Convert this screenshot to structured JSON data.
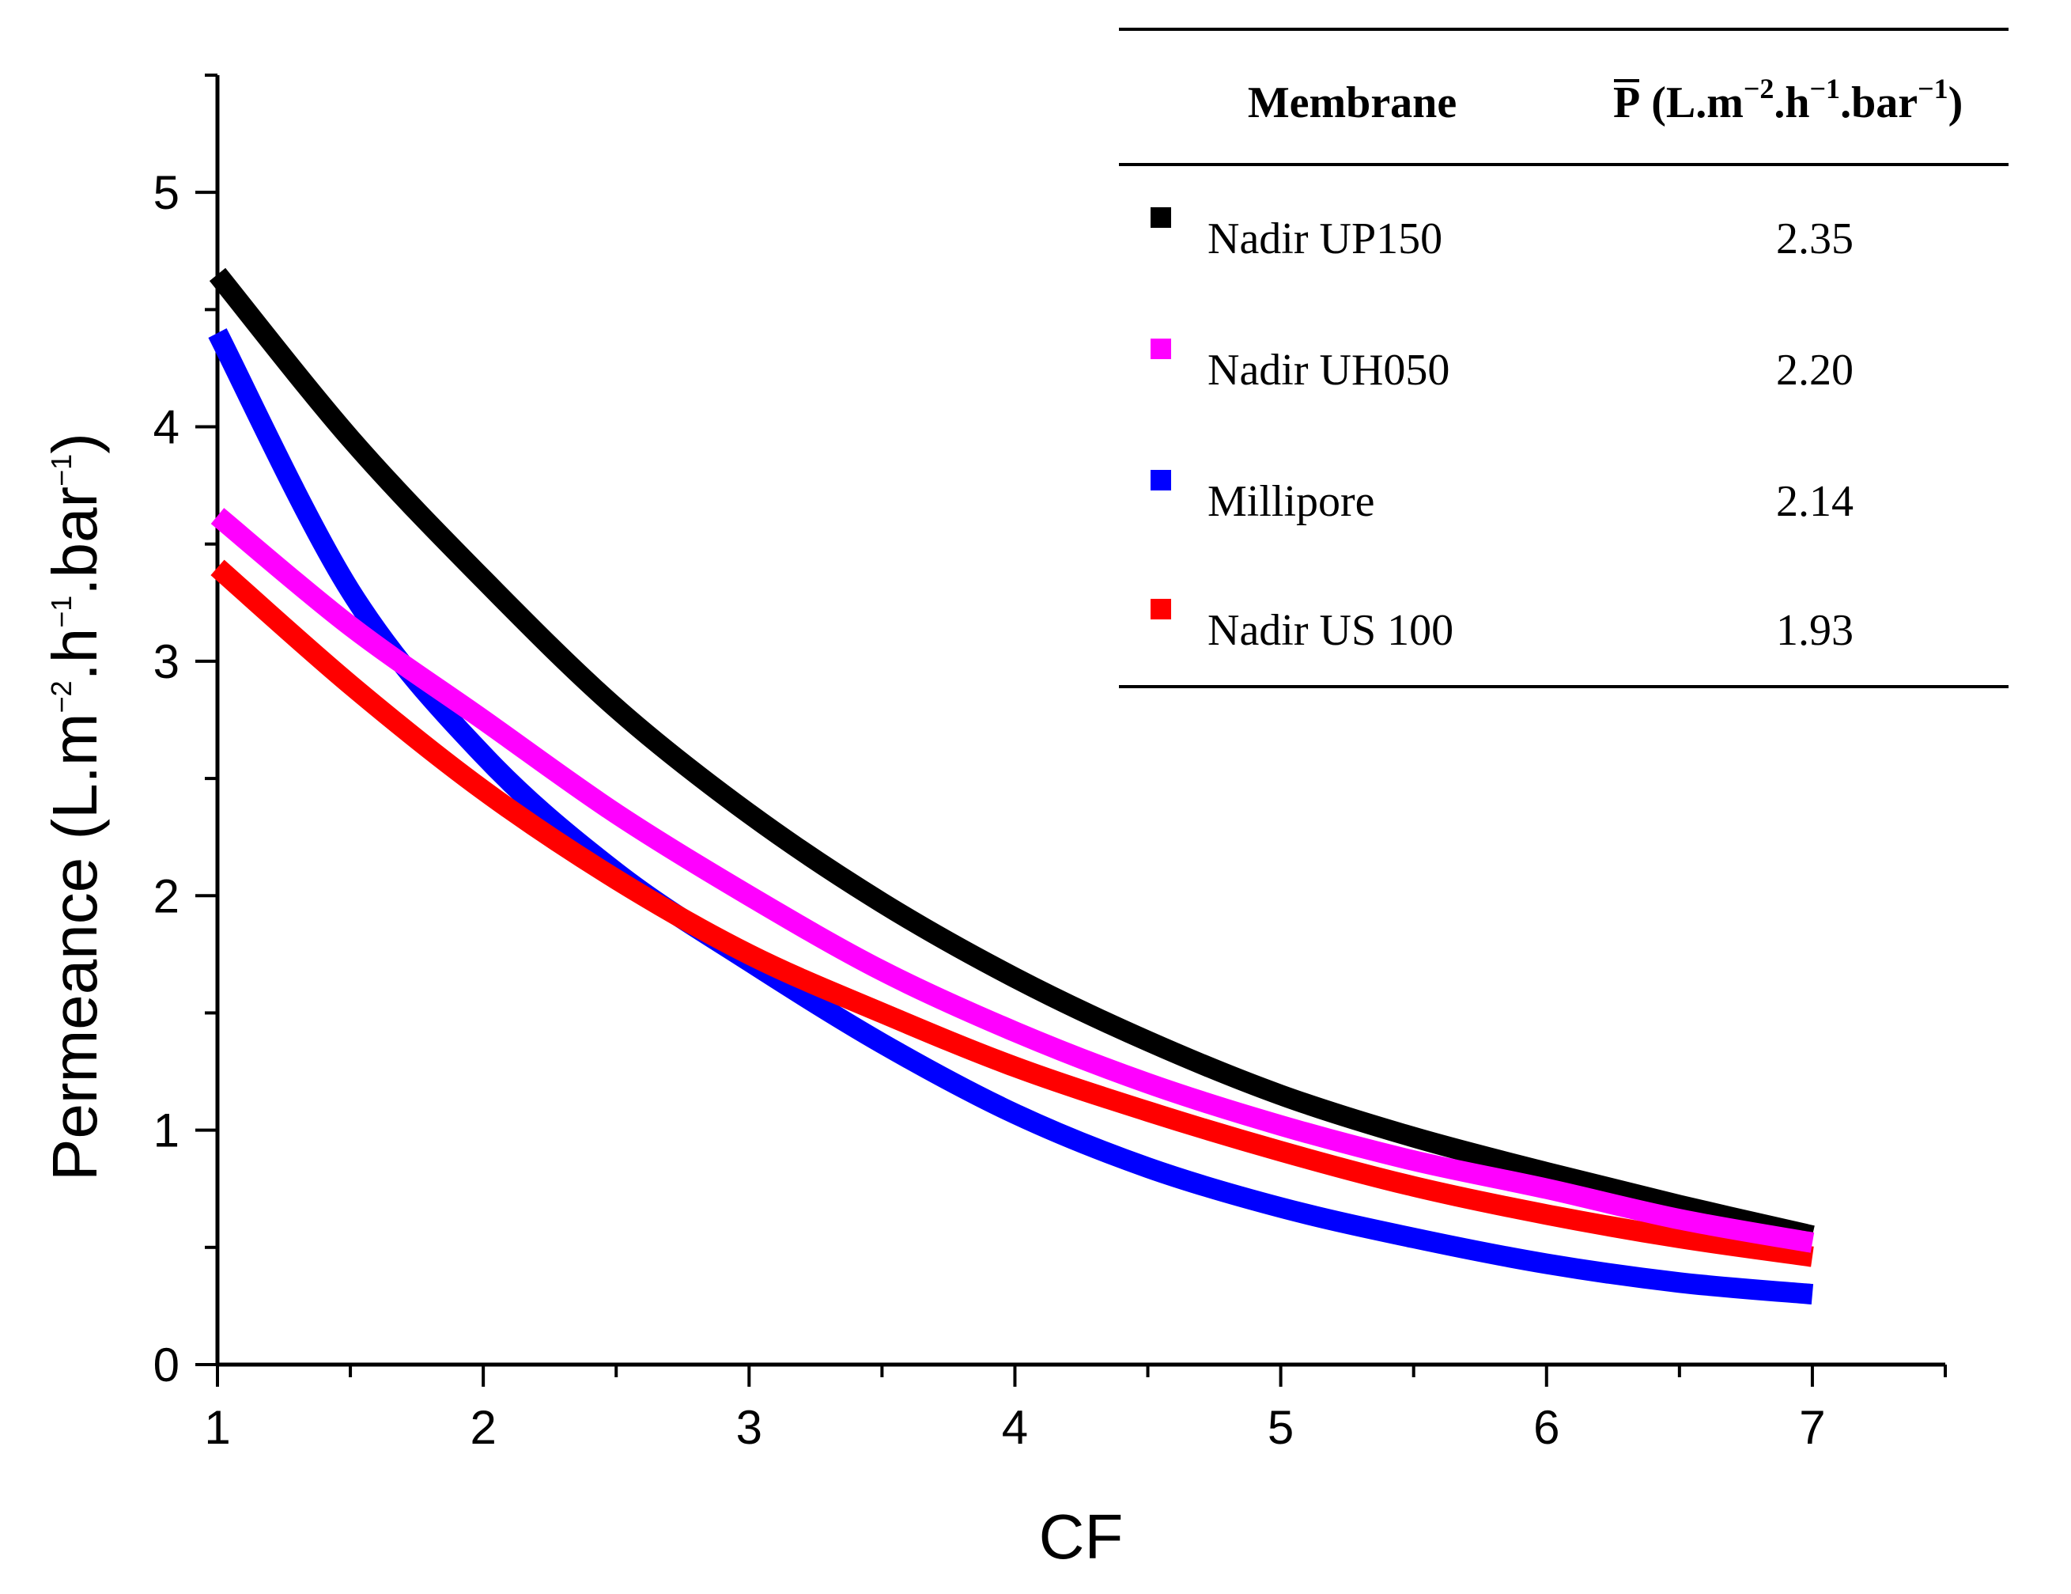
{
  "chart_data": {
    "type": "line",
    "xlabel": "CF",
    "ylabel": {
      "base": "Permeance (L.m",
      "sup1": "−2",
      "mid1": ".h",
      "sup2": "−1",
      "mid2": ".bar",
      "sup3": "−1",
      "end": ")"
    },
    "xlim": [
      1,
      7.5
    ],
    "ylim": [
      0,
      5.5
    ],
    "x_ticks": [
      "1",
      "2",
      "3",
      "4",
      "5",
      "6",
      "7"
    ],
    "y_ticks": [
      "0",
      "1",
      "2",
      "3",
      "4",
      "5"
    ],
    "grid": false,
    "legend_position": "top-right",
    "legend_table": {
      "header_membrane": "Membrane",
      "header_p": {
        "symbol": "P",
        "base": "(L.m",
        "sup1": "−2",
        "mid1": ".h",
        "sup2": "−1",
        "mid2": ".bar",
        "sup3": "−1",
        "end": ")"
      }
    },
    "series": [
      {
        "name": "Nadir UP150",
        "p_mean": "2.35",
        "color": "#000000",
        "x": [
          1.0,
          1.5,
          2.0,
          2.5,
          3.0,
          3.5,
          4.0,
          4.5,
          5.0,
          5.5,
          6.0,
          6.5,
          7.0
        ],
        "values": [
          4.65,
          3.95,
          3.35,
          2.8,
          2.35,
          1.97,
          1.65,
          1.38,
          1.15,
          0.97,
          0.82,
          0.68,
          0.55
        ]
      },
      {
        "name": "Nadir UH050",
        "p_mean": "2.20",
        "color": "#ff00ff",
        "x": [
          1.0,
          1.5,
          2.0,
          2.5,
          3.0,
          3.5,
          4.0,
          4.5,
          5.0,
          5.5,
          6.0,
          6.5,
          7.0
        ],
        "values": [
          3.62,
          3.15,
          2.75,
          2.35,
          2.0,
          1.68,
          1.42,
          1.2,
          1.02,
          0.87,
          0.75,
          0.62,
          0.52
        ]
      },
      {
        "name": "Millipore",
        "p_mean": "2.14",
        "color": "#0000ff",
        "x": [
          1.0,
          1.5,
          2.0,
          2.5,
          3.0,
          3.5,
          4.0,
          4.5,
          5.0,
          5.5,
          6.0,
          6.5,
          7.0
        ],
        "values": [
          4.4,
          3.3,
          2.6,
          2.1,
          1.72,
          1.37,
          1.07,
          0.84,
          0.67,
          0.54,
          0.43,
          0.35,
          0.3
        ]
      },
      {
        "name": "Nadir US 100",
        "p_mean": "1.93",
        "color": "#ff0000",
        "x": [
          1.0,
          1.5,
          2.0,
          2.5,
          3.0,
          3.5,
          4.0,
          4.5,
          5.0,
          5.5,
          6.0,
          6.5,
          7.0
        ],
        "values": [
          3.4,
          2.9,
          2.45,
          2.07,
          1.75,
          1.5,
          1.27,
          1.08,
          0.91,
          0.76,
          0.64,
          0.54,
          0.46
        ]
      }
    ]
  }
}
